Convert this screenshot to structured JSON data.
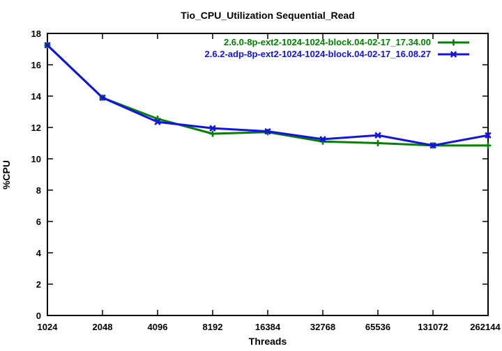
{
  "figure": {
    "background": "#ffffff",
    "frame_color": "#000000",
    "text_color": "#000000"
  },
  "chart_data": {
    "type": "line",
    "title": "Tio_CPU_Utilization Sequential_Read",
    "xlabel": "Threads",
    "ylabel": "%CPU",
    "x_scale": "log2",
    "grid": false,
    "legend_position": "top-right-inside",
    "categories": [
      "1024",
      "2048",
      "4096",
      "8192",
      "16384",
      "32768",
      "65536",
      "131072",
      "262144"
    ],
    "y_ticks": [
      0,
      2,
      4,
      6,
      8,
      10,
      12,
      14,
      16,
      18
    ],
    "ylim": [
      0,
      18
    ],
    "series": [
      {
        "name": "2.6.0-8p-ext2-1024-1024-block.04-02-17_17.34.00",
        "color": "#008000",
        "marker": "plus",
        "values": [
          17.25,
          13.9,
          12.55,
          11.6,
          11.7,
          11.1,
          11.0,
          10.85,
          10.85
        ]
      },
      {
        "name": "2.6.2-adp-8p-ext2-1024-1024-block.04-02-17_16.08.27",
        "color": "#1414e0",
        "marker": "cross",
        "values": [
          17.25,
          13.9,
          12.35,
          11.95,
          11.75,
          11.25,
          11.5,
          10.85,
          11.5
        ]
      }
    ]
  }
}
